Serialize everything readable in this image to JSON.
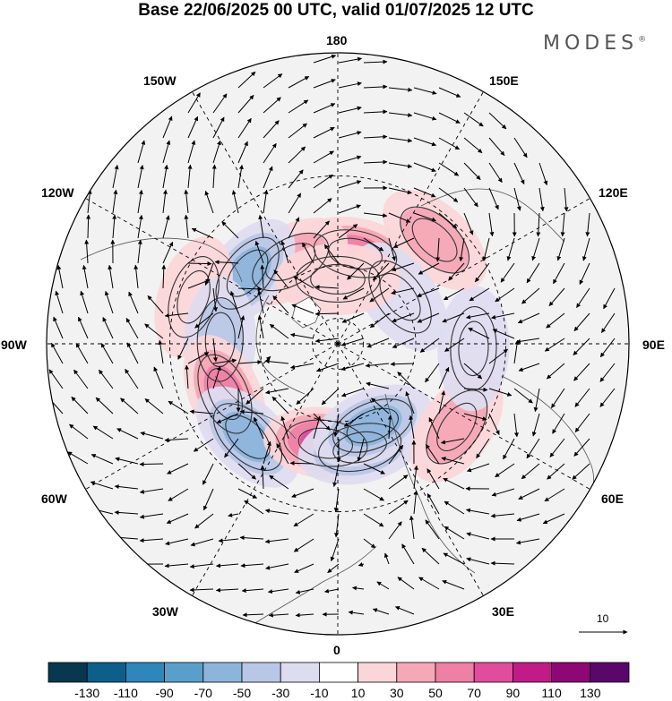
{
  "title": "Base 22/06/2025 00 UTC, valid 01/07/2025 12 UTC",
  "brand": "MODES",
  "brand_mark": "®",
  "longitude_labels": {
    "lon_180": "180",
    "lon_150e": "150E",
    "lon_120e": "120E",
    "lon_90e": "90E",
    "lon_60e": "60E",
    "lon_30e": "30E",
    "lon_0": "0",
    "lon_30w": "30W",
    "lon_60w": "60W",
    "lon_90w": "90W",
    "lon_120w": "120W",
    "lon_150w": "150W"
  },
  "colorbar": {
    "labels": [
      "-130",
      "-110",
      "-90",
      "-70",
      "-50",
      "-30",
      "-10",
      "10",
      "30",
      "50",
      "70",
      "90",
      "110",
      "130"
    ],
    "colors": [
      "#08384f",
      "#0d5e8a",
      "#2f86ba",
      "#5a9fcc",
      "#8db5dc",
      "#b9c7e6",
      "#dedcef",
      "#ffffff",
      "#fbd6d8",
      "#f5a8b6",
      "#ee7fa5",
      "#e24c9d",
      "#c11b88",
      "#8d0875",
      "#5a076b"
    ]
  },
  "reference_vector": {
    "label": "10"
  },
  "anomaly_centers": [
    {
      "lon": 169,
      "lat": 55,
      "value": 60
    },
    {
      "lon": -150,
      "lat": 54,
      "value": 50
    },
    {
      "lon": -128,
      "lat": 47,
      "value": -60
    },
    {
      "lon": -108,
      "lat": 35,
      "value": 30
    },
    {
      "lon": -92,
      "lat": 46,
      "value": -40
    },
    {
      "lon": -66,
      "lat": 44,
      "value": 70
    },
    {
      "lon": -44,
      "lat": 42,
      "value": -60
    },
    {
      "lon": -7,
      "lat": 52,
      "value": 90
    },
    {
      "lon": 12,
      "lat": 50,
      "value": -70
    },
    {
      "lon": 23,
      "lat": 56,
      "value": -60
    },
    {
      "lon": 55,
      "lat": 37,
      "value": 50
    },
    {
      "lon": 88,
      "lat": 40,
      "value": -30
    },
    {
      "lon": 137,
      "lat": 38,
      "value": 40
    },
    {
      "lon": 127,
      "lat": 60,
      "value": -20
    },
    {
      "lon": 180,
      "lat": 65,
      "value": 20
    }
  ]
}
